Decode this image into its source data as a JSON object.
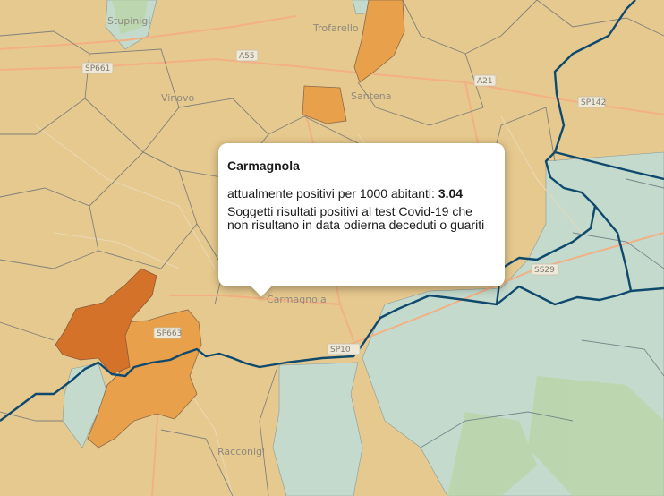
{
  "map": {
    "place_labels": [
      "Trofarello",
      "Vinovo",
      "Santena",
      "Carmagnola",
      "Racconigi",
      "Stupinigi"
    ],
    "road_labels": [
      "A55",
      "A21",
      "SP142",
      "SP10",
      "SP661",
      "SS29",
      "SP663"
    ],
    "colors": {
      "low": "#e6c98e",
      "zero": "#c3dacc",
      "medium": "#e9a04a",
      "high": "#d4722a",
      "border": "#0f4a6e",
      "roads": "#f3b083",
      "parks": "#b7d39d"
    }
  },
  "popup": {
    "title": "Carmagnola",
    "metric_label": "attualmente positivi per 1000 abitanti:",
    "metric_value": "3.04",
    "description": "Soggetti risultati positivi al test Covid-19 che non risultano in data odierna deceduti o guariti"
  }
}
